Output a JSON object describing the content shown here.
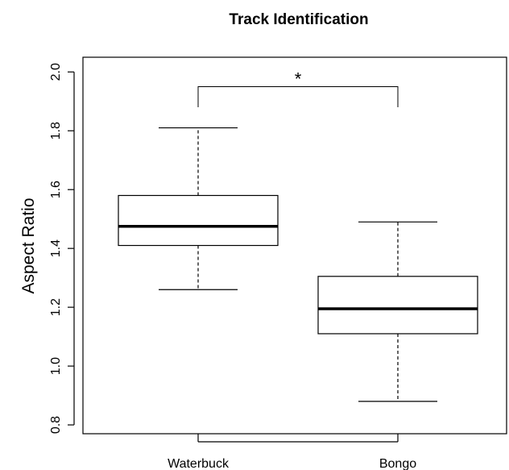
{
  "chart_data": {
    "type": "box",
    "title": "Track Identification",
    "xlabel": "",
    "ylabel": "Aspect Ratio",
    "ylim": [
      0.77,
      2.05
    ],
    "yticks": [
      0.8,
      1.0,
      1.2,
      1.4,
      1.6,
      1.8,
      2.0
    ],
    "ytick_labels": [
      "0.8",
      "1.0",
      "1.2",
      "1.4",
      "1.6",
      "1.8",
      "2.0"
    ],
    "categories": [
      "Waterbuck",
      "Bongo"
    ],
    "boxes": [
      {
        "name": "Waterbuck",
        "min": 1.26,
        "q1": 1.41,
        "median": 1.475,
        "q3": 1.58,
        "max": 1.81
      },
      {
        "name": "Bongo",
        "min": 0.88,
        "q1": 1.11,
        "median": 1.195,
        "q3": 1.305,
        "max": 1.49
      }
    ],
    "significance": {
      "between": [
        "Waterbuck",
        "Bongo"
      ],
      "label": "*",
      "y": 1.95,
      "drop_to": 1.88
    },
    "grid": false,
    "legend": "none"
  }
}
